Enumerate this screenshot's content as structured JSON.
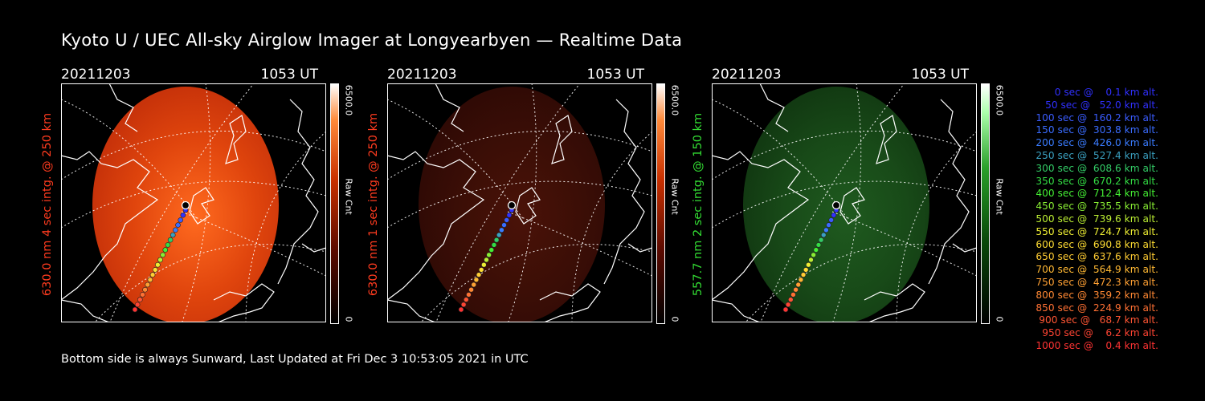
{
  "title": "Kyoto U / UEC All-sky Airglow Imager at Longyearbyen — Realtime Data",
  "footer": "Bottom side is always Sunward, Last Updated at Fri Dec  3 10:53:05 2021 in UTC",
  "panels": [
    {
      "date": "20211203",
      "time": "1053 UT",
      "side_label": "630.0 nm  4 sec intg. @ 250 km",
      "label_color": "#ff3b1f",
      "cbar_max": "6500.0",
      "cbar_min": "0",
      "cbar_unit": "Raw Cnt",
      "glow": "red-bright"
    },
    {
      "date": "20211203",
      "time": "1053 UT",
      "side_label": "630.0 nm  1 sec intg. @ 250 km",
      "label_color": "#ff3b1f",
      "cbar_max": "6500.0",
      "cbar_min": "0",
      "cbar_unit": "Raw Cnt",
      "glow": "red-dim"
    },
    {
      "date": "20211203",
      "time": "1053 UT",
      "side_label": "557.7 nm  2 sec intg. @ 150 km",
      "label_color": "#33dd33",
      "cbar_max": "6500.0",
      "cbar_min": "0",
      "cbar_unit": "Raw Cnt",
      "glow": "green"
    }
  ],
  "legend": [
    {
      "text": "0 sec @    0.1 km alt.",
      "color": "#3030ff"
    },
    {
      "text": "50 sec @   52.0 km alt.",
      "color": "#3030ff"
    },
    {
      "text": "100 sec @  160.2 km alt.",
      "color": "#3a5cff"
    },
    {
      "text": "150 sec @  303.8 km alt.",
      "color": "#3a6cff"
    },
    {
      "text": "200 sec @  426.0 km alt.",
      "color": "#3a7cff"
    },
    {
      "text": "250 sec @  527.4 km alt.",
      "color": "#3aa0c0"
    },
    {
      "text": "300 sec @  608.6 km alt.",
      "color": "#33cc66"
    },
    {
      "text": "350 sec @  670.2 km alt.",
      "color": "#33dd44"
    },
    {
      "text": "400 sec @  712.4 km alt.",
      "color": "#44ee33"
    },
    {
      "text": "450 sec @  735.5 km alt.",
      "color": "#88ee33"
    },
    {
      "text": "500 sec @  739.6 km alt.",
      "color": "#bbee33"
    },
    {
      "text": "550 sec @  724.7 km alt.",
      "color": "#eeee33"
    },
    {
      "text": "600 sec @  690.8 km alt.",
      "color": "#ffdd33"
    },
    {
      "text": "650 sec @  637.6 km alt.",
      "color": "#ffcc33"
    },
    {
      "text": "700 sec @  564.9 km alt.",
      "color": "#ffb833"
    },
    {
      "text": "750 sec @  472.3 km alt.",
      "color": "#ffa033"
    },
    {
      "text": "800 sec @  359.2 km alt.",
      "color": "#ff8833"
    },
    {
      "text": "850 sec @  224.9 km alt.",
      "color": "#ff7033"
    },
    {
      "text": "900 sec @   68.7 km alt.",
      "color": "#ff5533"
    },
    {
      "text": "950 sec @    6.2 km alt.",
      "color": "#ff4433"
    },
    {
      "text": "1000 sec @    0.4 km alt.",
      "color": "#ff3333"
    }
  ]
}
